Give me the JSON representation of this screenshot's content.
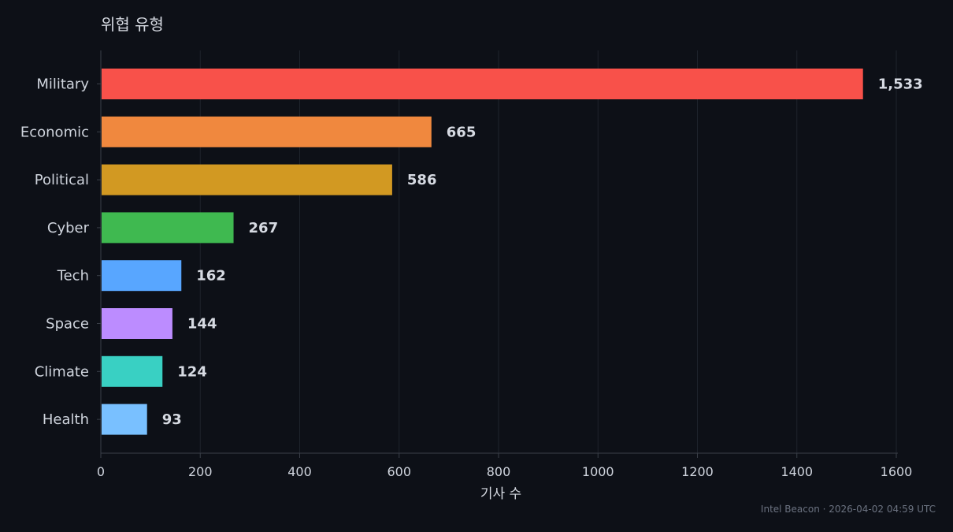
{
  "chart_data": {
    "type": "bar",
    "orientation": "horizontal",
    "title": "위협 유형",
    "xlabel": "기사 수",
    "ylabel": "",
    "xlim": [
      0,
      1600
    ],
    "xticks": [
      0,
      200,
      400,
      600,
      800,
      1000,
      1200,
      1400,
      1600
    ],
    "grid": true,
    "categories": [
      "Military",
      "Economic",
      "Political",
      "Cyber",
      "Tech",
      "Space",
      "Climate",
      "Health"
    ],
    "values": [
      1533,
      665,
      586,
      267,
      162,
      144,
      124,
      93
    ],
    "value_labels": [
      "1,533",
      "665",
      "586",
      "267",
      "162",
      "144",
      "124",
      "93"
    ],
    "colors": [
      "#f8514a",
      "#f0883e",
      "#d29922",
      "#3fb950",
      "#58a6ff",
      "#bc8cff",
      "#39d0c3",
      "#79c0ff"
    ]
  },
  "footer": {
    "text": "Intel Beacon · 2026-04-02 04:59 UTC"
  },
  "theme": {
    "background": "#0d1017",
    "grid": "#1e232c",
    "axis": "#3a3f48",
    "text": "#cfd4dd"
  }
}
